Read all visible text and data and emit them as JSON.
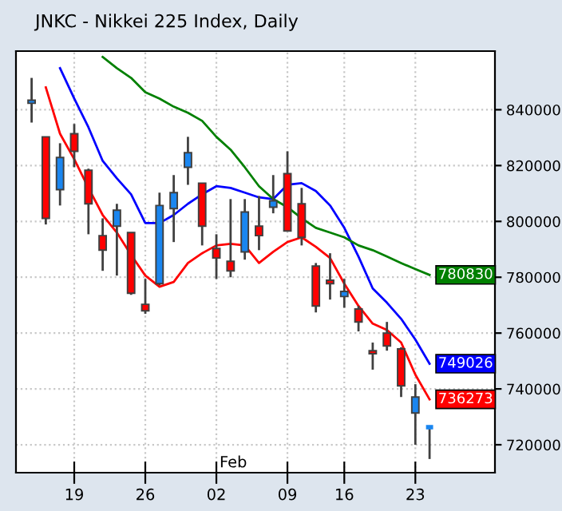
{
  "chart_data": {
    "type": "candlestick",
    "title": "JNKC - Nikkei 225 Index, Daily",
    "categories": [
      null,
      null,
      null,
      "19",
      null,
      null,
      null,
      null,
      "26",
      null,
      null,
      null,
      null,
      "02",
      null,
      null,
      null,
      null,
      "09",
      null,
      null,
      null,
      "16",
      null,
      null,
      null,
      null,
      "23",
      null
    ],
    "ohlc": [
      [
        842300,
        851400,
        835400,
        843400
      ],
      [
        830300,
        830300,
        798900,
        801100
      ],
      [
        811400,
        828000,
        805700,
        822900
      ],
      [
        831400,
        834900,
        819400,
        825100
      ],
      [
        818300,
        818900,
        795400,
        806300
      ],
      [
        794900,
        801100,
        782300,
        789700
      ],
      [
        798300,
        806300,
        780600,
        804000
      ],
      [
        796000,
        796000,
        773700,
        774300
      ],
      [
        770300,
        779400,
        766900,
        768000
      ],
      [
        777700,
        810300,
        777100,
        805700
      ],
      [
        804600,
        816600,
        792600,
        810300
      ],
      [
        819400,
        830300,
        813100,
        824600
      ],
      [
        813700,
        813700,
        791400,
        798300
      ],
      [
        790300,
        795400,
        779400,
        786900
      ],
      [
        785700,
        808000,
        780000,
        782300
      ],
      [
        789100,
        808000,
        786300,
        803400
      ],
      [
        798300,
        809100,
        789700,
        794900
      ],
      [
        805100,
        816600,
        802900,
        807400
      ],
      [
        817100,
        825100,
        796600,
        796600
      ],
      [
        806300,
        812000,
        791400,
        794300
      ],
      [
        784000,
        785100,
        767400,
        769700
      ],
      [
        778900,
        788600,
        772000,
        777700
      ],
      [
        773100,
        779400,
        769100,
        774900
      ],
      [
        768600,
        769700,
        760600,
        764000
      ],
      [
        753700,
        756600,
        746900,
        752600
      ],
      [
        760000,
        764000,
        753700,
        755400
      ],
      [
        754300,
        754900,
        737100,
        741100
      ],
      [
        731400,
        741700,
        720000,
        737100
      ],
      [
        726300,
        726300,
        714900,
        726300
      ]
    ],
    "colors": [
      "#1a86f0",
      "#ff0000",
      "#1a86f0",
      "#ff0000",
      "#ff0000",
      "#ff0000",
      "#1a86f0",
      "#ff0000",
      "#ff0000",
      "#1a86f0",
      "#1a86f0",
      "#1a86f0",
      "#ff0000",
      "#ff0000",
      "#ff0000",
      "#1a86f0",
      "#ff0000",
      "#1a86f0",
      "#ff0000",
      "#ff0000",
      "#ff0000",
      "#ff0000",
      "#1a86f0",
      "#ff0000",
      "#ff0000",
      "#ff0000",
      "#ff0000",
      "#1a86f0",
      "#1a86f0"
    ],
    "series": [
      {
        "type": "line",
        "color": "#ff0000",
        "values": [
          null,
          848000,
          831400,
          822300,
          812000,
          802300,
          796000,
          788000,
          780600,
          776600,
          778300,
          785100,
          788600,
          791400,
          792000,
          791400,
          785100,
          789100,
          792600,
          794300,
          790900,
          786900,
          777700,
          769700,
          763400,
          761100,
          756600,
          745100,
          736273
        ],
        "value_labels": [
          null,
          null,
          null,
          null,
          null,
          null,
          null,
          null,
          null,
          null,
          null,
          null,
          null,
          null,
          null,
          null,
          null,
          null,
          null,
          null,
          null,
          null,
          null,
          null,
          null,
          null,
          null,
          null,
          "736273"
        ]
      },
      {
        "type": "line",
        "color": "#0000ff",
        "values": [
          null,
          null,
          854900,
          844000,
          833700,
          821700,
          815400,
          809700,
          799400,
          799400,
          802300,
          806300,
          809700,
          812600,
          812000,
          810300,
          808600,
          808000,
          813100,
          813700,
          810900,
          805700,
          797700,
          787400,
          776000,
          770900,
          765100,
          757700,
          749026
        ],
        "value_labels": [
          null,
          null,
          null,
          null,
          null,
          null,
          null,
          null,
          null,
          null,
          null,
          null,
          null,
          null,
          null,
          null,
          null,
          null,
          null,
          null,
          null,
          null,
          null,
          null,
          null,
          null,
          null,
          null,
          "749026"
        ]
      },
      {
        "type": "line",
        "color": "#008000",
        "values": [
          null,
          null,
          null,
          null,
          null,
          858900,
          854900,
          851400,
          846300,
          844000,
          841100,
          838900,
          836000,
          830300,
          825700,
          819400,
          812600,
          808000,
          805100,
          801100,
          797700,
          796000,
          794300,
          791400,
          789700,
          787400,
          785100,
          782900,
          780830
        ],
        "value_labels": [
          null,
          null,
          null,
          null,
          null,
          null,
          null,
          null,
          null,
          null,
          null,
          null,
          null,
          null,
          null,
          null,
          null,
          null,
          null,
          null,
          null,
          null,
          null,
          null,
          null,
          null,
          null,
          null,
          "780830"
        ]
      }
    ],
    "ylim": [
      710000,
      861000
    ],
    "yticks": [
      720000,
      740000,
      760000,
      780000,
      800000,
      820000,
      840000
    ],
    "grid": true,
    "marker": "none",
    "line_style": "solid",
    "annotations": [
      "Feb"
    ]
  }
}
